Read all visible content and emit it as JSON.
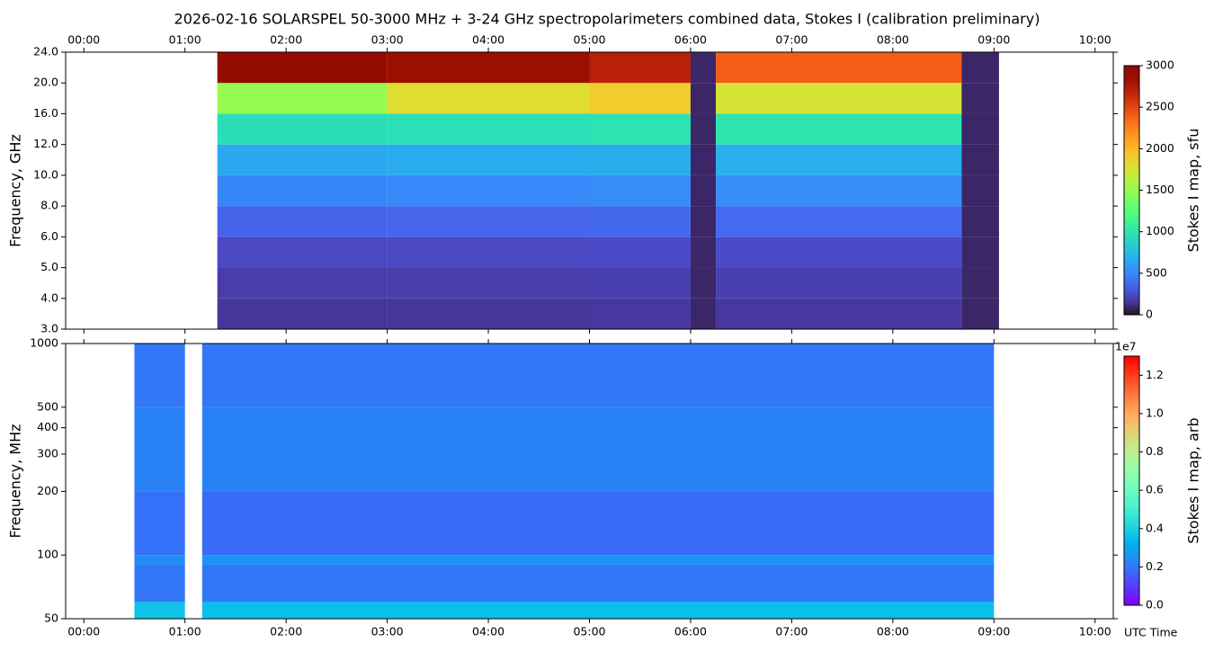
{
  "chart_data": [
    {
      "type": "heatmap",
      "title": "2026-02-16  SOLARSPEL  50-3000 MHz  +  3-24 GHz  spectropolarimeters combined data,  Stokes I  (calibration preliminary)",
      "ylabel": "Frequency, GHz",
      "colorbar_label": "Stokes I map, sfu",
      "colormap": "turbo",
      "xlim": [
        -0.18,
        10.18
      ],
      "xticks": [
        {
          "value": 0,
          "label": "00:00"
        },
        {
          "value": 1,
          "label": "01:00"
        },
        {
          "value": 2,
          "label": "02:00"
        },
        {
          "value": 3,
          "label": "03:00"
        },
        {
          "value": 4,
          "label": "04:00"
        },
        {
          "value": 5,
          "label": "05:00"
        },
        {
          "value": 6,
          "label": "06:00"
        },
        {
          "value": 7,
          "label": "07:00"
        },
        {
          "value": 8,
          "label": "08:00"
        },
        {
          "value": 9,
          "label": "09:00"
        },
        {
          "value": 10,
          "label": "10:00"
        }
      ],
      "yticks": [
        {
          "value": 3,
          "label": "3.0"
        },
        {
          "value": 4,
          "label": "4.0"
        },
        {
          "value": 5,
          "label": "5.0"
        },
        {
          "value": 6,
          "label": "6.0"
        },
        {
          "value": 8,
          "label": "8.0"
        },
        {
          "value": 10,
          "label": "10.0"
        },
        {
          "value": 12,
          "label": "12.0"
        },
        {
          "value": 16,
          "label": "16.0"
        },
        {
          "value": 20,
          "label": "20.0"
        },
        {
          "value": 24,
          "label": "24.0"
        }
      ],
      "x_edges": [
        1.32,
        3.0,
        5.0,
        6.0,
        6.25,
        8.68,
        9.05
      ],
      "y_edges": [
        3,
        4,
        5,
        6,
        8,
        10,
        12,
        16,
        20,
        24
      ],
      "values": [
        [
          150,
          150,
          160,
          80,
          160,
          80
        ],
        [
          180,
          180,
          190,
          80,
          190,
          80
        ],
        [
          230,
          230,
          240,
          80,
          240,
          80
        ],
        [
          350,
          360,
          370,
          80,
          380,
          80
        ],
        [
          500,
          510,
          520,
          80,
          530,
          80
        ],
        [
          650,
          660,
          670,
          80,
          680,
          80
        ],
        [
          950,
          960,
          980,
          80,
          1000,
          80
        ],
        [
          1500,
          1800,
          1900,
          80,
          1750,
          80
        ],
        [
          2900,
          2850,
          2700,
          80,
          2400,
          80
        ]
      ],
      "clim": [
        0,
        3000
      ],
      "cticks": [
        0,
        500,
        1000,
        1500,
        2000,
        2500,
        3000
      ]
    },
    {
      "type": "heatmap",
      "ylabel": "Frequency, MHz",
      "xlabel": "UTC Time",
      "colorbar_label": "Stokes I map, arb",
      "colormap": "rainbow",
      "log_y": true,
      "xlim": [
        -0.18,
        10.18
      ],
      "xticks": [
        {
          "value": 0,
          "label": "00:00"
        },
        {
          "value": 1,
          "label": "01:00"
        },
        {
          "value": 2,
          "label": "02:00"
        },
        {
          "value": 3,
          "label": "03:00"
        },
        {
          "value": 4,
          "label": "04:00"
        },
        {
          "value": 5,
          "label": "05:00"
        },
        {
          "value": 6,
          "label": "06:00"
        },
        {
          "value": 7,
          "label": "07:00"
        },
        {
          "value": 8,
          "label": "08:00"
        },
        {
          "value": 9,
          "label": "09:00"
        },
        {
          "value": 10,
          "label": "10:00"
        }
      ],
      "ylim": [
        50,
        1000
      ],
      "yticks": [
        50,
        100,
        200,
        300,
        400,
        500,
        1000
      ],
      "x_edges": [
        0.5,
        1.0,
        1.17,
        9.0
      ],
      "y_edges": [
        50,
        60,
        90,
        100,
        200,
        500,
        1000
      ],
      "values": [
        [
          3600000,
          null,
          3500000
        ],
        [
          2000000,
          null,
          2000000
        ],
        [
          2400000,
          null,
          2600000
        ],
        [
          1900000,
          null,
          1800000
        ],
        [
          2200000,
          null,
          2200000
        ],
        [
          2000000,
          null,
          2000000
        ]
      ],
      "clim": [
        0,
        13000000
      ],
      "cticks": [
        {
          "value": 0,
          "label": "0.0"
        },
        {
          "value": 2000000,
          "label": "0.2"
        },
        {
          "value": 4000000,
          "label": "0.4"
        },
        {
          "value": 6000000,
          "label": "0.6"
        },
        {
          "value": 8000000,
          "label": "0.8"
        },
        {
          "value": 10000000,
          "label": "1.0"
        },
        {
          "value": 12000000,
          "label": "1.2"
        }
      ],
      "coffset_label": "1e7"
    }
  ]
}
